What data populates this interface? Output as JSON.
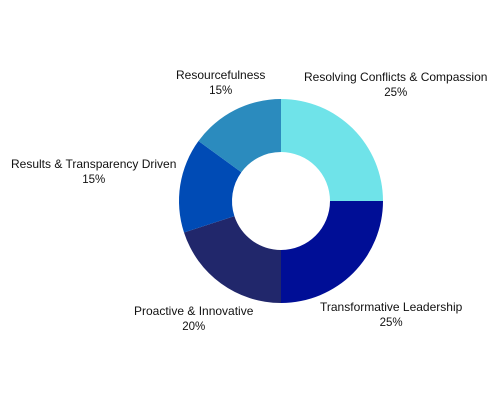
{
  "chart_data": {
    "type": "pie",
    "donut": true,
    "start_angle_deg": 0,
    "direction": "clockwise",
    "slices": [
      {
        "label": "Resolving Conflicts & Compassion",
        "value": 25,
        "value_label": "25%",
        "color": "#6fe3e9"
      },
      {
        "label": "Transformative Leadership",
        "value": 25,
        "value_label": "25%",
        "color": "#000e96"
      },
      {
        "label": "Proactive & Innovative",
        "value": 20,
        "value_label": "20%",
        "color": "#21276b"
      },
      {
        "label": "Results & Transparency Driven",
        "value": 15,
        "value_label": "15%",
        "color": "#004bb5"
      },
      {
        "label": "Resourcefulness",
        "value": 15,
        "value_label": "15%",
        "color": "#2b8bbe"
      }
    ]
  }
}
